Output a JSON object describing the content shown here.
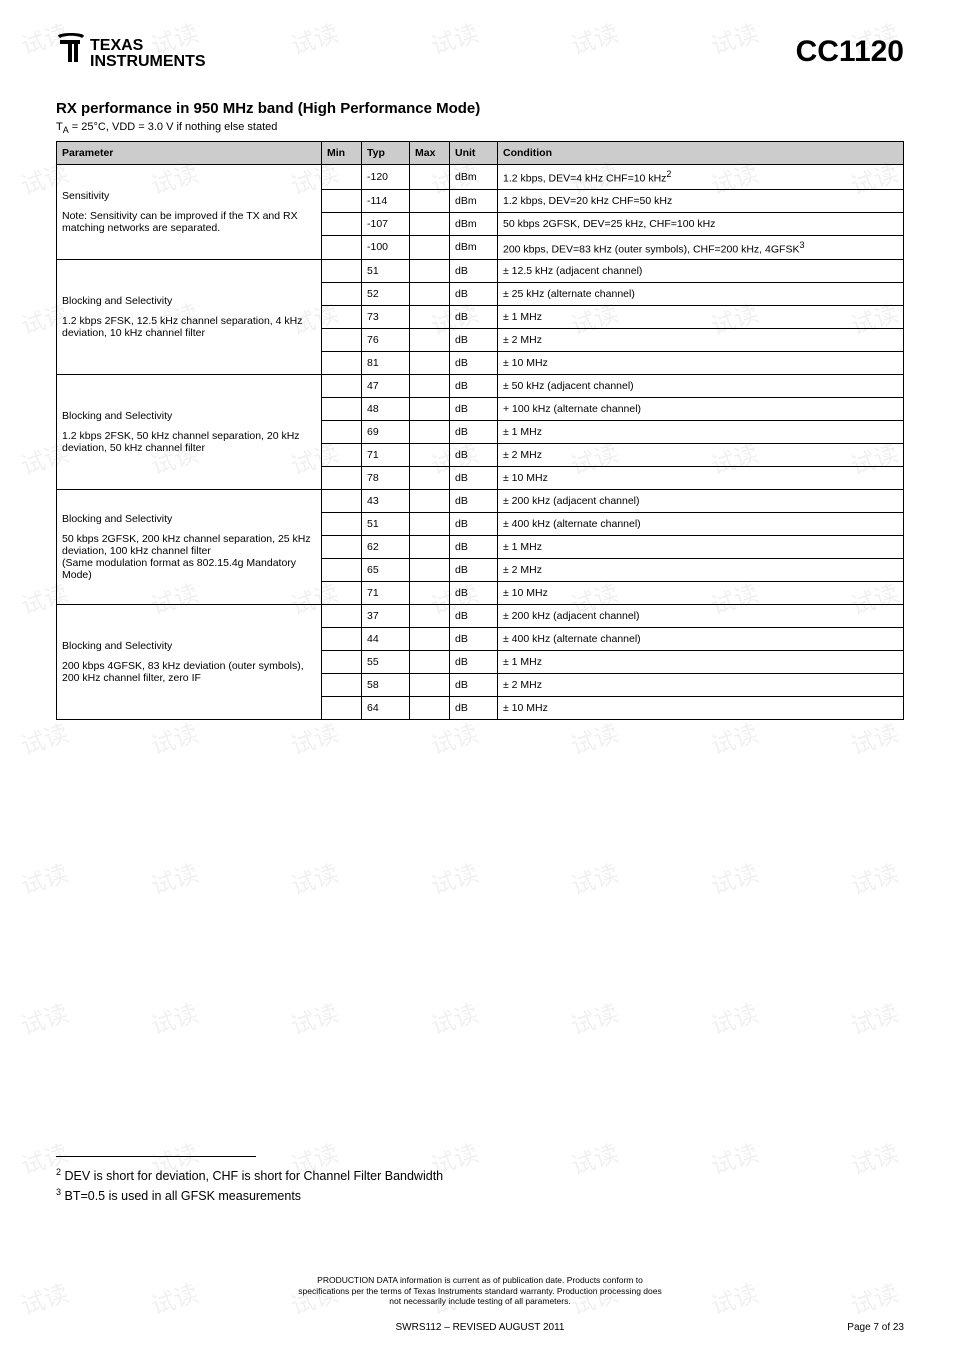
{
  "header": {
    "logo_text_top": "TEXAS",
    "logo_text_bottom": "INSTRUMENTS",
    "part_number": "CC1120"
  },
  "section": {
    "title": "RX performance in 950 MHz band (High Performance Mode)",
    "subnote_prefix": "T",
    "subnote_sub": "A",
    "subnote_rest": " = 25°C, VDD = 3.0 V if nothing else stated"
  },
  "table": {
    "headers": {
      "parameter": "Parameter",
      "min": "Min",
      "typ": "Typ",
      "max": "Max",
      "unit": "Unit",
      "condition": "Condition"
    },
    "groups": [
      {
        "param_title": "Sensitivity",
        "param_sub": "Note: Sensitivity can be improved if the TX and RX matching networks are separated.",
        "rows": [
          {
            "typ": "-120",
            "unit": "dBm",
            "cond": "1.2 kbps, DEV=4 kHz CHF=10 kHz",
            "sup": "2"
          },
          {
            "typ": "-114",
            "unit": "dBm",
            "cond": "1.2 kbps, DEV=20 kHz CHF=50 kHz"
          },
          {
            "typ": "-107",
            "unit": "dBm",
            "cond": "50 kbps 2GFSK, DEV=25 kHz, CHF=100 kHz"
          },
          {
            "typ": "-100",
            "unit": "dBm",
            "cond": "200 kbps, DEV=83 kHz (outer symbols), CHF=200 kHz, 4GFSK",
            "sup": "3"
          }
        ]
      },
      {
        "param_title": "Blocking and Selectivity",
        "param_sub": "1.2 kbps 2FSK, 12.5 kHz channel separation, 4 kHz deviation, 10 kHz channel filter",
        "rows": [
          {
            "typ": "51",
            "unit": "dB",
            "cond": "± 12.5 kHz (adjacent channel)"
          },
          {
            "typ": "52",
            "unit": "dB",
            "cond": "± 25 kHz (alternate channel)"
          },
          {
            "typ": "73",
            "unit": "dB",
            "cond": "± 1 MHz"
          },
          {
            "typ": "76",
            "unit": "dB",
            "cond": "± 2 MHz"
          },
          {
            "typ": "81",
            "unit": "dB",
            "cond": "± 10 MHz"
          }
        ]
      },
      {
        "param_title": "Blocking and Selectivity",
        "param_sub": "1.2 kbps 2FSK, 50 kHz channel separation, 20 kHz deviation, 50 kHz channel filter",
        "rows": [
          {
            "typ": "47",
            "unit": "dB",
            "cond": "± 50 kHz (adjacent channel)"
          },
          {
            "typ": "48",
            "unit": "dB",
            "cond": "+ 100 kHz (alternate channel)"
          },
          {
            "typ": "69",
            "unit": "dB",
            "cond": "± 1 MHz"
          },
          {
            "typ": "71",
            "unit": "dB",
            "cond": "± 2 MHz"
          },
          {
            "typ": "78",
            "unit": "dB",
            "cond": "± 10 MHz"
          }
        ]
      },
      {
        "param_title": "Blocking and Selectivity",
        "param_sub": "50 kbps 2GFSK, 200 kHz channel separation, 25 kHz deviation, 100 kHz channel filter\n(Same modulation format as 802.15.4g Mandatory Mode)",
        "rows": [
          {
            "typ": "43",
            "unit": "dB",
            "cond": "± 200 kHz (adjacent channel)"
          },
          {
            "typ": "51",
            "unit": "dB",
            "cond": "± 400 kHz (alternate channel)"
          },
          {
            "typ": "62",
            "unit": "dB",
            "cond": "± 1 MHz"
          },
          {
            "typ": "65",
            "unit": "dB",
            "cond": "± 2 MHz"
          },
          {
            "typ": "71",
            "unit": "dB",
            "cond": "± 10 MHz"
          }
        ]
      },
      {
        "param_title": "Blocking and Selectivity",
        "param_sub": "200 kbps 4GFSK, 83 kHz deviation (outer symbols), 200 kHz channel filter, zero IF",
        "rows": [
          {
            "typ": "37",
            "unit": "dB",
            "cond": "± 200 kHz (adjacent channel)"
          },
          {
            "typ": "44",
            "unit": "dB",
            "cond": "± 400 kHz (alternate channel)"
          },
          {
            "typ": "55",
            "unit": "dB",
            "cond": "± 1 MHz"
          },
          {
            "typ": "58",
            "unit": "dB",
            "cond": "± 2 MHz"
          },
          {
            "typ": "64",
            "unit": "dB",
            "cond": "± 10 MHz"
          }
        ]
      }
    ]
  },
  "footnotes": {
    "f2_sup": "2",
    "f2_text": " DEV is short for deviation, CHF is short for Channel Filter Bandwidth",
    "f3_sup": "3",
    "f3_text": " BT=0.5 is used in all GFSK measurements"
  },
  "prod_data": {
    "l1": "PRODUCTION DATA information is current as of publication date. Products conform to",
    "l2": "specifications per the terms of Texas Instruments standard warranty. Production processing does",
    "l3": "not necessarily include testing of all parameters."
  },
  "footer": {
    "doc": "SWRS112 – REVISED AUGUST 2011",
    "page": "Page 7 of 23"
  },
  "watermark_text": "试读"
}
